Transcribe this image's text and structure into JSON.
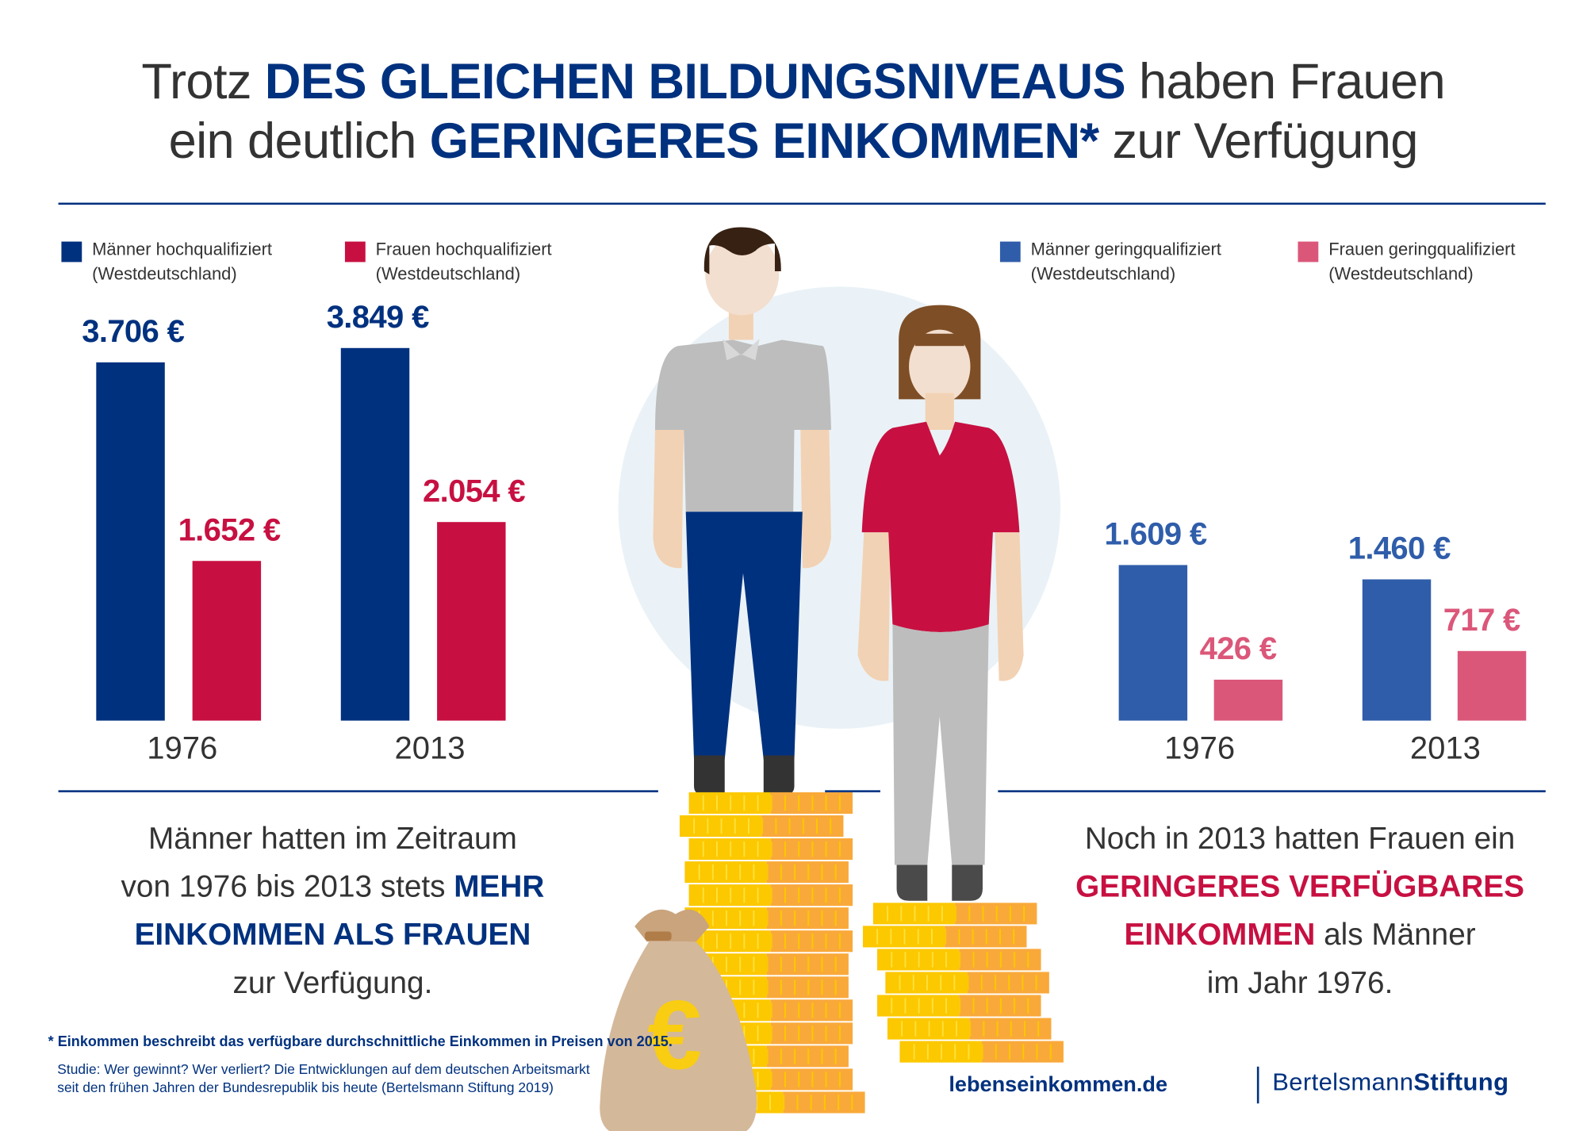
{
  "title": {
    "line1": {
      "pre": "Trotz ",
      "bold": "DES GLEICHEN BILDUNGSNIVEAUS",
      "post": " haben Frauen"
    },
    "line2": {
      "pre": "ein deutlich ",
      "bold": "GERINGERES EINKOMMEN*",
      "post": " zur Verfügung"
    }
  },
  "colors": {
    "dark_blue": "#00317f",
    "red": "#c71041",
    "light_blue": "#2f5daa",
    "pink": "#db577a",
    "circle_bg": "#eaf2f7",
    "text": "#333333"
  },
  "chart_data": [
    {
      "type": "bar",
      "title": "Hochqualifiziert (Westdeutschland)",
      "categories": [
        "1976",
        "2013"
      ],
      "series": [
        {
          "name": "Männer hochqualifiziert (Westdeutschland)",
          "values": [
            3706,
            3849
          ],
          "labels": [
            "3.706 €",
            "3.849 €"
          ],
          "color": "#00317f"
        },
        {
          "name": "Frauen hochqualifiziert (Westdeutschland)",
          "values": [
            1652,
            2054
          ],
          "labels": [
            "1.652 €",
            "2.054 €"
          ],
          "color": "#c71041"
        }
      ],
      "unit": "€",
      "xlabel": "",
      "ylabel": "",
      "grid": false,
      "legend": "top-left"
    },
    {
      "type": "bar",
      "title": "Geringqualifiziert (Westdeutschland)",
      "categories": [
        "1976",
        "2013"
      ],
      "series": [
        {
          "name": "Männer geringqualifiziert (Westdeutschland)",
          "values": [
            1609,
            1460
          ],
          "labels": [
            "1.609 €",
            "1.460 €"
          ],
          "color": "#2f5daa"
        },
        {
          "name": "Frauen geringqualifiziert (Westdeutschland)",
          "values": [
            426,
            717
          ],
          "labels": [
            "426 €",
            "717 €"
          ],
          "color": "#db577a"
        }
      ],
      "unit": "€",
      "xlabel": "",
      "ylabel": "",
      "grid": false,
      "legend": "top-right"
    }
  ],
  "legend_left": [
    {
      "line1": "Männer hochqualifiziert",
      "line2": "(Westdeutschland)"
    },
    {
      "line1": "Frauen hochqualifiziert",
      "line2": "(Westdeutschland)"
    }
  ],
  "legend_right": [
    {
      "line1": "Männer geringqualifiziert",
      "line2": "(Westdeutschland)"
    },
    {
      "line1": "Frauen geringqualifiziert",
      "line2": "(Westdeutschland)"
    }
  ],
  "statement_left": {
    "l1": "Männer hatten im Zeitraum",
    "l2_pre": "von 1976 bis 2013 stets ",
    "l2_bold": "MEHR",
    "l3_bold": "EINKOMMEN ALS FRAUEN",
    "l4": "zur Verfügung."
  },
  "statement_right": {
    "l1": "Noch in 2013 hatten Frauen ein",
    "l2_bold": "GERINGERES VERFÜGBARES",
    "l3_bold": "EINKOMMEN",
    "l3_post": " als Männer",
    "l4": "im Jahr 1976."
  },
  "illustration": {
    "man": "man-figure",
    "woman": "woman-figure",
    "money_bag_symbol": "€"
  },
  "footer": {
    "footnote": "* Einkommen beschreibt das verfügbare durchschnittliche Einkommen in Preisen von 2015.",
    "source_l1": "Studie: Wer gewinnt? Wer verliert? Die Entwicklungen auf dem deutschen Arbeitsmarkt",
    "source_l2": "seit den frühen Jahren der Bundesrepublik bis heute (Bertelsmann Stiftung 2019)",
    "site": "lebenseinkommen.de",
    "brand_light": "Bertelsmann",
    "brand_bold": "Stiftung"
  }
}
